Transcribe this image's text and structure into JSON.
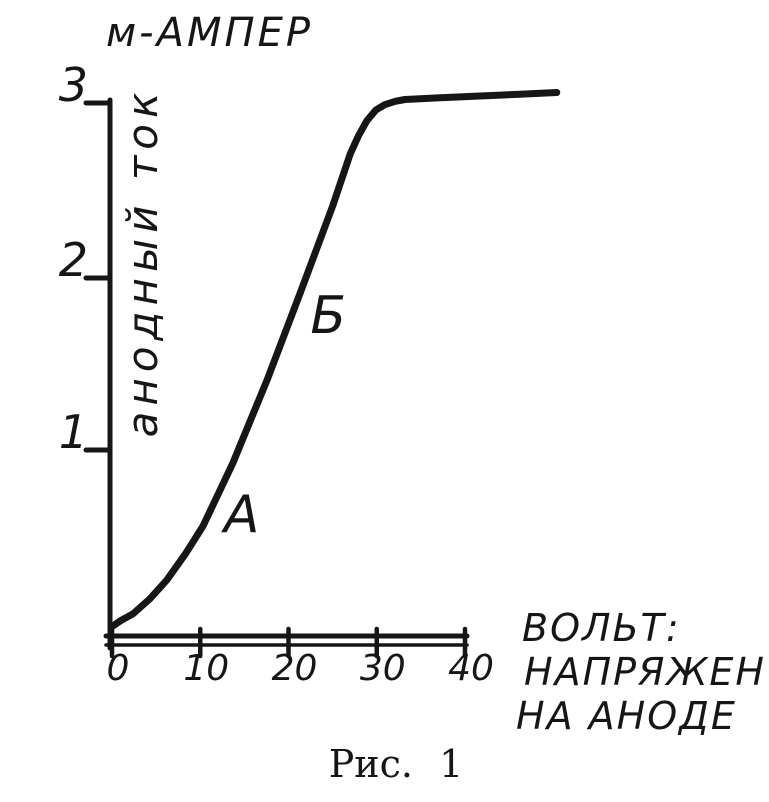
{
  "figure": {
    "caption": "Рис. 1"
  },
  "chart_data": {
    "type": "line",
    "title": "м-АМПЕР",
    "ylabel": "анодный ток",
    "xlabel": "ВОЛЬТ: НАПРЯЖЕН НА АНОДЕ",
    "xlabel_lines": [
      "ВОЛЬТ:",
      "НАПРЯЖЕН",
      "НА АНОДЕ"
    ],
    "x_ticks": [
      0,
      10,
      20,
      30,
      40
    ],
    "y_ticks": [
      1,
      2,
      3
    ],
    "xlim": [
      0,
      40
    ],
    "ylim": [
      0,
      3
    ],
    "grid": false,
    "ink_color": "#161616",
    "series": [
      {
        "name": "анодный ток (м-ампер) от напряжения на аноде (вольт)",
        "x": [
          0,
          0.9,
          2.4,
          4.3,
          6.2,
          8.3,
          10.3,
          13.7,
          17.6,
          21.3,
          25.0,
          27.0,
          27.9,
          28.9,
          29.9,
          30.9,
          32.1,
          33.2,
          37.2,
          41.7,
          46.2,
          50.4
        ],
        "y": [
          0.05,
          0.08,
          0.12,
          0.2,
          0.3,
          0.44,
          0.59,
          0.93,
          1.41,
          1.91,
          2.41,
          2.71,
          2.81,
          2.9,
          2.96,
          2.99,
          3.01,
          3.02,
          3.03,
          3.04,
          3.05,
          3.06
        ]
      }
    ],
    "annotations": [
      {
        "label": "А",
        "x": 14.7,
        "y": 0.65
      },
      {
        "label": "Б",
        "x": 24.5,
        "y": 1.78
      }
    ]
  }
}
